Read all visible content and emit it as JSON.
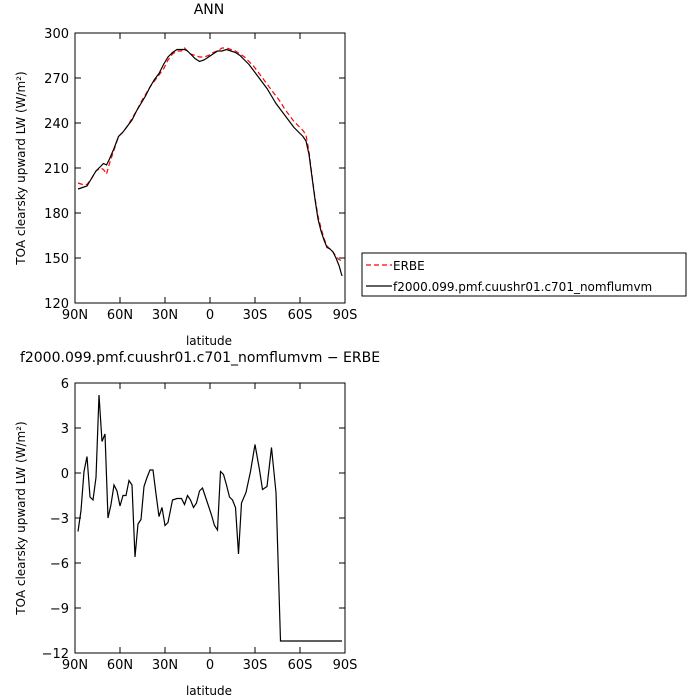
{
  "chart_data": [
    {
      "type": "line",
      "title": "ANN",
      "xlabel": "latitude",
      "ylabel": "TOA clearsky upward LW (W/m²)",
      "xlim": [
        90,
        -90
      ],
      "ylim": [
        120,
        300
      ],
      "x_ticks": [
        90,
        60,
        30,
        0,
        -30,
        -60,
        -90
      ],
      "x_tick_labels": [
        "90N",
        "60N",
        "30N",
        "0",
        "30S",
        "60S",
        "90S"
      ],
      "y_ticks": [
        120,
        150,
        180,
        210,
        240,
        270,
        300
      ],
      "y_tick_labels": [
        "120",
        "150",
        "180",
        "210",
        "240",
        "270",
        "300"
      ],
      "grid": false,
      "legend_position": "right",
      "series": [
        {
          "name": "ERBE",
          "color": "#ff0000",
          "dash": "dashed",
          "x": [
            88,
            85,
            82,
            79,
            76,
            73,
            71,
            69,
            67,
            64,
            61,
            58,
            55,
            52,
            49,
            46,
            43,
            40,
            37,
            34,
            31,
            28,
            25,
            22,
            19,
            17,
            15,
            13,
            10,
            7,
            4,
            1,
            -2,
            -5,
            -8,
            -11,
            -14,
            -17,
            -20,
            -23,
            -26,
            -29,
            -32,
            -35,
            -38,
            -41,
            -44,
            -47,
            -50,
            -53,
            -56,
            -59,
            -62,
            -64,
            -66,
            -68,
            -70,
            -72,
            -74,
            -76,
            -78,
            -80,
            -82,
            -84,
            -86,
            -88
          ],
          "y": [
            200,
            199,
            199,
            203,
            208,
            210,
            209,
            206,
            213,
            222,
            231,
            234,
            238,
            243,
            248,
            254,
            259,
            264,
            268,
            272,
            276,
            282,
            286,
            288,
            288,
            290,
            288,
            286,
            285,
            284,
            284,
            285,
            287,
            288,
            290,
            290,
            289,
            288,
            286,
            284,
            281,
            278,
            274,
            270,
            266,
            262,
            258,
            254,
            249,
            245,
            241,
            238,
            235,
            232,
            221,
            205,
            190,
            178,
            170,
            163,
            158,
            156,
            154,
            151,
            149,
            148
          ]
        },
        {
          "name": "f2000.099.pmf.cuushr01.c701_nomflumvm",
          "color": "#000000",
          "dash": "solid",
          "x": [
            88,
            85,
            82,
            79,
            76,
            73,
            71,
            69,
            67,
            64,
            61,
            58,
            55,
            52,
            49,
            46,
            43,
            40,
            37,
            34,
            31,
            28,
            25,
            22,
            19,
            17,
            15,
            13,
            10,
            7,
            4,
            1,
            -2,
            -5,
            -8,
            -11,
            -14,
            -17,
            -20,
            -23,
            -26,
            -29,
            -32,
            -35,
            -38,
            -41,
            -44,
            -47,
            -50,
            -53,
            -56,
            -59,
            -62,
            -64,
            -66,
            -68,
            -70,
            -72,
            -74,
            -76,
            -78,
            -80,
            -82,
            -84,
            -86,
            -88
          ],
          "y": [
            196,
            197,
            198,
            203,
            208,
            211,
            213,
            212,
            216,
            223,
            231,
            234,
            238,
            242,
            248,
            253,
            258,
            264,
            269,
            273,
            279,
            284,
            287,
            289,
            289,
            289,
            288,
            286,
            283,
            281,
            282,
            284,
            286,
            288,
            288,
            289,
            288,
            287,
            285,
            282,
            279,
            275,
            271,
            267,
            263,
            258,
            253,
            249,
            245,
            241,
            237,
            234,
            231,
            228,
            219,
            204,
            189,
            176,
            168,
            162,
            157,
            156,
            154,
            150,
            145,
            138
          ]
        }
      ]
    },
    {
      "type": "line",
      "title": "f2000.099.pmf.cuushr01.c701_nomflumvm − ERBE",
      "xlabel": "latitude",
      "ylabel": "TOA clearsky upward LW (W/m²)",
      "xlim": [
        90,
        -90
      ],
      "ylim": [
        -12,
        6
      ],
      "x_ticks": [
        90,
        60,
        30,
        0,
        -30,
        -60,
        -90
      ],
      "x_tick_labels": [
        "90N",
        "60N",
        "30N",
        "0",
        "30S",
        "60S",
        "90S"
      ],
      "y_ticks": [
        -12,
        -9,
        -6,
        -3,
        0,
        3,
        6
      ],
      "y_tick_labels": [
        "−12",
        "−9",
        "−6",
        "−3",
        "0",
        "3",
        "6"
      ],
      "grid": false,
      "series": [
        {
          "color": "#000000",
          "dash": "solid",
          "x": [
            88,
            86,
            84,
            82,
            80,
            78,
            76,
            74,
            72,
            70,
            68,
            66,
            64,
            62,
            60,
            58,
            56,
            54,
            52,
            50,
            48,
            46,
            44,
            42,
            40,
            38,
            36,
            34,
            32,
            30,
            28,
            25,
            22,
            19,
            17,
            15,
            13,
            11,
            9,
            7,
            5,
            3,
            1,
            -1,
            -3,
            -5,
            -7,
            -9,
            -11,
            -13,
            -15,
            -17,
            -19,
            -21,
            -24,
            -27,
            -30,
            -33,
            -35,
            -38,
            -41,
            -44,
            -47,
            -50,
            -53,
            -56,
            -59,
            -62,
            -65,
            -68,
            -71,
            -73,
            -75,
            -77,
            -79,
            -81,
            -83,
            -85,
            -87,
            -88
          ],
          "y": [
            -3.9,
            -2.5,
            0.1,
            1.1,
            -1.6,
            -1.8,
            -0.3,
            5.2,
            2.1,
            2.6,
            -3.0,
            -2.1,
            -0.8,
            -1.2,
            -2.2,
            -1.5,
            -1.5,
            -0.5,
            -0.8,
            -5.6,
            -3.4,
            -3.1,
            -0.9,
            -0.3,
            0.2,
            0.2,
            -1.4,
            -2.9,
            -2.3,
            -3.5,
            -3.3,
            -1.8,
            -1.7,
            -1.7,
            -2.1,
            -1.5,
            -1.8,
            -2.3,
            -2.0,
            -1.2,
            -1.0,
            -1.6,
            -2.2,
            -2.8,
            -3.5,
            -3.8,
            0.1,
            -0.1,
            -0.8,
            -1.6,
            -1.8,
            -2.3,
            -5.4,
            -2.0,
            -1.3,
            0.1,
            1.9,
            0.2,
            -1.1,
            -0.9,
            1.7,
            -1.3,
            -11.2,
            -11.2,
            -11.2,
            -11.2,
            -11.2,
            -11.2,
            -11.2,
            -11.2,
            -11.2,
            -11.2,
            -11.2,
            -11.2,
            -11.2,
            -11.2,
            -11.2,
            -11.2,
            -11.2,
            -11.2
          ]
        }
      ]
    }
  ]
}
